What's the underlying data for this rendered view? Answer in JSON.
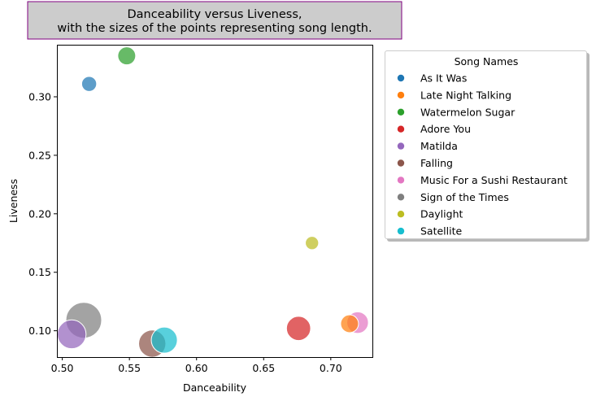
{
  "chart_data": {
    "type": "scatter",
    "title": "Danceability versus Liveness,\nwith the sizes of the points representing song length.",
    "xlabel": "Danceability",
    "ylabel": "Liveness",
    "xlim": [
      0.496,
      0.731
    ],
    "ylim": [
      0.0775,
      0.3445
    ],
    "xticks": [
      "0.50",
      "0.55",
      "0.60",
      "0.65",
      "0.70"
    ],
    "xtick_values": [
      0.5,
      0.55,
      0.6,
      0.65,
      0.7
    ],
    "yticks": [
      "0.10",
      "0.15",
      "0.20",
      "0.25",
      "0.30"
    ],
    "ytick_values": [
      0.1,
      0.15,
      0.2,
      0.25,
      0.3
    ],
    "grid": false,
    "legend_title": "Song Names",
    "legend_placement": "outside-right",
    "series": [
      {
        "name": "As It Was",
        "x": 0.52,
        "y": 0.311,
        "size": 0.12,
        "color": "#1f77b4"
      },
      {
        "name": "Late Night Talking",
        "x": 0.714,
        "y": 0.106,
        "size": 0.2,
        "color": "#ff7f0e"
      },
      {
        "name": "Watermelon Sugar",
        "x": 0.548,
        "y": 0.335,
        "size": 0.2,
        "color": "#2ca02c"
      },
      {
        "name": "Adore You",
        "x": 0.676,
        "y": 0.102,
        "size": 0.42,
        "color": "#d62728"
      },
      {
        "name": "Matilda",
        "x": 0.507,
        "y": 0.097,
        "size": 0.62,
        "color": "#9467bd"
      },
      {
        "name": "Falling",
        "x": 0.567,
        "y": 0.089,
        "size": 0.55,
        "color": "#8c564b"
      },
      {
        "name": "Music For a Sushi Restaurant",
        "x": 0.72,
        "y": 0.107,
        "size": 0.32,
        "color": "#e377c2"
      },
      {
        "name": "Sign of the Times",
        "x": 0.516,
        "y": 0.109,
        "size": 1.0,
        "color": "#7f7f7f"
      },
      {
        "name": "Daylight",
        "x": 0.686,
        "y": 0.175,
        "size": 0.08,
        "color": "#bcbd22"
      },
      {
        "name": "Satellite",
        "x": 0.576,
        "y": 0.092,
        "size": 0.5,
        "color": "#17becf"
      }
    ]
  }
}
